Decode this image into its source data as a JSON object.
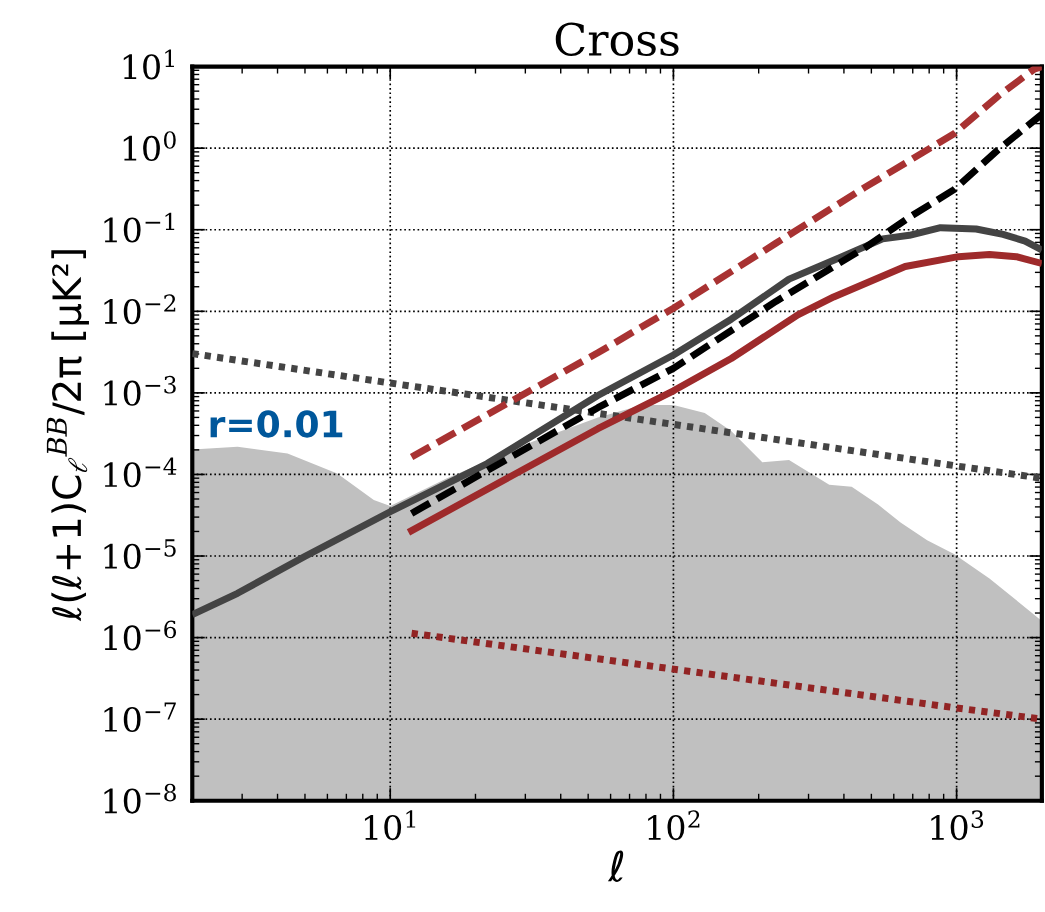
{
  "chart_data": {
    "type": "line",
    "title": "Cross",
    "xlabel": "ℓ",
    "ylabel": "ℓ(ℓ+1)C$_{ℓ}$$^{BB}$/2π [μK²]",
    "log": "xy",
    "grid": true,
    "xlim": [
      2,
      2000
    ],
    "ylim": [
      1e-08,
      10
    ],
    "xticks": [
      {
        "value": 10,
        "label": "10$^{1}$"
      },
      {
        "value": 100,
        "label": "10$^{2}$"
      },
      {
        "value": 1000,
        "label": "10$^{3}$"
      }
    ],
    "yticks": [
      {
        "value": 1e-08,
        "label": "10$^{−8}$"
      },
      {
        "value": 1e-07,
        "label": "10$^{−7}$"
      },
      {
        "value": 1e-06,
        "label": "10$^{−6}$"
      },
      {
        "value": 1e-05,
        "label": "10$^{−5}$"
      },
      {
        "value": 0.0001,
        "label": "10$^{−4}$"
      },
      {
        "value": 0.001,
        "label": "10$^{−3}$"
      },
      {
        "value": 0.01,
        "label": "10$^{−2}$"
      },
      {
        "value": 0.1,
        "label": "10$^{−1}$"
      },
      {
        "value": 1,
        "label": "10$^{0}$"
      },
      {
        "value": 10,
        "label": "10$^{1}$"
      }
    ],
    "annotations": [
      "r=0.01"
    ],
    "series": [
      {
        "type": "area",
        "color": "#c0c0c0",
        "x": [
          2,
          2.89,
          4.34,
          6.5,
          8.75,
          10,
          15.8,
          31.6,
          54.1,
          77.6,
          100,
          129,
          160,
          206,
          256,
          355,
          426,
          528,
          634,
          787,
          979,
          1306,
          2000
        ],
        "values": [
          0.000202,
          0.000218,
          0.000181,
          0.000103,
          4.85e-05,
          4.09e-05,
          8.9e-05,
          0.00025,
          0.000499,
          0.00071,
          0.00071,
          0.000566,
          0.000341,
          0.000141,
          0.00015,
          7.5e-05,
          7.06e-05,
          4.27e-05,
          2.58e-05,
          1.56e-05,
          1.06e-05,
          5.3e-06,
          1.6e-06
        ]
      },
      {
        "color": "#444444",
        "line_style": "dotted",
        "x": [
          2,
          10,
          100,
          1000,
          2000
        ],
        "values": [
          0.00303,
          0.00132,
          0.000411,
          0.000127,
          8.97e-05
        ]
      },
      {
        "color": "#922424",
        "line_style": "dotted",
        "x": [
          11.9,
          54.1,
          1000,
          2000
        ],
        "values": [
          1.13e-06,
          5.5e-07,
          1.37e-07,
          1e-07
        ]
      },
      {
        "color": "#9e2a2b",
        "line_style": "solid",
        "x": [
          11.6,
          54.1,
          100,
          160,
          275,
          368,
          658,
          1014,
          1306,
          1626,
          2000
        ],
        "values": [
          1.95e-05,
          0.000364,
          0.00106,
          0.00264,
          0.00906,
          0.015,
          0.0354,
          0.0467,
          0.0498,
          0.0467,
          0.0386
        ]
      },
      {
        "color": "#444444",
        "line_style": "solid",
        "x": [
          2,
          2.89,
          4.97,
          10,
          22,
          54.1,
          100,
          160,
          256,
          368,
          548,
          681,
          877,
          1172,
          1459,
          1746,
          2000
        ],
        "values": [
          1.91e-06,
          3.49e-06,
          9.8e-06,
          3.49e-05,
          0.000136,
          0.00093,
          0.00291,
          0.008,
          0.0248,
          0.0422,
          0.0773,
          0.0855,
          0.106,
          0.102,
          0.0877,
          0.0726,
          0.0564
        ]
      },
      {
        "color": "#a83232",
        "line_style": "dashed",
        "x": [
          11.9,
          54.1,
          100,
          230,
          474,
          979,
          1406,
          1879,
          2000
        ],
        "values": [
          0.000164,
          0.0031,
          0.0109,
          0.0682,
          0.33,
          1.5,
          4.38,
          9.31,
          10
        ]
      },
      {
        "color": "#000000",
        "line_style": "dashed",
        "x": [
          11.9,
          54.1,
          100,
          230,
          474,
          681,
          979,
          1406,
          2000
        ],
        "values": [
          3.33e-05,
          0.000658,
          0.002,
          0.0132,
          0.0601,
          0.142,
          0.31,
          0.964,
          2.6
        ]
      }
    ]
  }
}
